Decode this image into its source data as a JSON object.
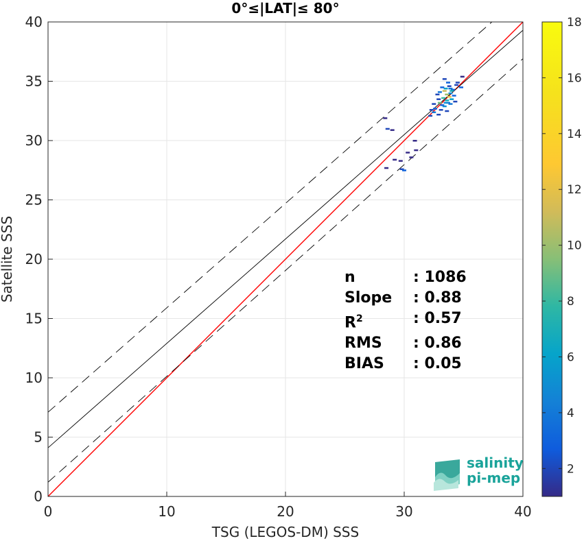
{
  "chart_data": {
    "type": "scatter",
    "title": "0°≤|LAT|≤ 80°",
    "xlabel": "TSG (LEGOS-DM) SSS",
    "ylabel": "Satellite SSS",
    "xlim": [
      0,
      40
    ],
    "ylim": [
      0,
      40
    ],
    "xticks": [
      0,
      10,
      20,
      30,
      40
    ],
    "yticks": [
      0,
      5,
      10,
      15,
      20,
      25,
      30,
      35,
      40
    ],
    "grid": true,
    "colorbar": {
      "min": 1,
      "max": 18,
      "ticks": [
        2,
        4,
        6,
        8,
        10,
        12,
        14,
        16,
        18
      ],
      "colormap": "parula"
    },
    "lines": [
      {
        "name": "1:1",
        "color": "#ff0000",
        "style": "solid",
        "points": [
          [
            0,
            0
          ],
          [
            40,
            40
          ]
        ]
      },
      {
        "name": "fit",
        "color": "#000000",
        "style": "solid",
        "points": [
          [
            0,
            4.1
          ],
          [
            40,
            39.3
          ]
        ]
      },
      {
        "name": "fit+",
        "color": "#000000",
        "style": "dashed",
        "points": [
          [
            0,
            7.1
          ],
          [
            40,
            42.3
          ]
        ]
      },
      {
        "name": "fit-",
        "color": "#000000",
        "style": "dashed",
        "points": [
          [
            0,
            1.2
          ],
          [
            40,
            36.9
          ]
        ]
      }
    ],
    "points": [
      [
        33.5,
        34.4,
        6
      ],
      [
        33.7,
        33.2,
        4
      ],
      [
        33.9,
        34.0,
        5
      ],
      [
        33.3,
        33.6,
        8
      ],
      [
        34.1,
        34.3,
        3
      ],
      [
        33.6,
        33.9,
        10
      ],
      [
        33.8,
        34.6,
        2
      ],
      [
        33.2,
        33.0,
        3
      ],
      [
        34.4,
        34.7,
        2
      ],
      [
        33.4,
        32.9,
        5
      ],
      [
        32.9,
        33.5,
        2
      ],
      [
        33.0,
        34.1,
        4
      ],
      [
        34.2,
        33.8,
        3
      ],
      [
        33.6,
        33.4,
        7
      ],
      [
        33.8,
        33.7,
        12
      ],
      [
        33.5,
        33.2,
        5
      ],
      [
        33.1,
        32.6,
        2
      ],
      [
        32.6,
        32.7,
        3
      ],
      [
        32.3,
        32.6,
        2
      ],
      [
        32.2,
        32.1,
        2
      ],
      [
        33.4,
        35.2,
        2
      ],
      [
        34.5,
        34.9,
        2
      ],
      [
        34.8,
        34.5,
        3
      ],
      [
        34.9,
        35.4,
        1
      ],
      [
        33.7,
        34.9,
        3
      ],
      [
        32.8,
        33.9,
        2
      ],
      [
        32.9,
        32.2,
        2
      ],
      [
        33.9,
        33.1,
        4
      ],
      [
        34.0,
        33.5,
        6
      ],
      [
        33.2,
        34.5,
        3
      ],
      [
        32.5,
        33.1,
        2
      ],
      [
        33.6,
        32.5,
        2
      ],
      [
        34.3,
        33.3,
        2
      ],
      [
        33.0,
        33.2,
        9
      ],
      [
        33.9,
        34.4,
        4
      ],
      [
        29.2,
        28.4,
        1
      ],
      [
        29.7,
        28.3,
        1
      ],
      [
        30.6,
        28.6,
        1
      ],
      [
        29.8,
        27.6,
        2
      ],
      [
        30.0,
        27.5,
        3
      ],
      [
        28.5,
        27.7,
        1
      ],
      [
        30.3,
        29.0,
        1
      ],
      [
        31.0,
        29.2,
        1
      ],
      [
        30.9,
        30.0,
        1
      ],
      [
        28.6,
        31.0,
        2
      ],
      [
        29.0,
        30.9,
        1
      ],
      [
        28.4,
        31.9,
        1
      ],
      [
        32.5,
        32.4,
        4
      ],
      [
        33.4,
        34.2,
        11
      ],
      [
        34.0,
        34.2,
        7
      ]
    ]
  },
  "stats": {
    "rows": [
      {
        "k": "n",
        "v": ": 1086"
      },
      {
        "k": "Slope",
        "v": ": 0.88"
      },
      {
        "k": "R2",
        "v": ": 0.57"
      },
      {
        "k": "RMS",
        "v": ": 0.86"
      },
      {
        "k": "BIAS",
        "v": ": 0.05"
      }
    ]
  },
  "logo": {
    "line1": "salinity",
    "line2": "pi-mep"
  },
  "colors": {
    "fit_line": "#000000",
    "one_to_one": "#ff0000",
    "logo": "#1aa39a"
  }
}
